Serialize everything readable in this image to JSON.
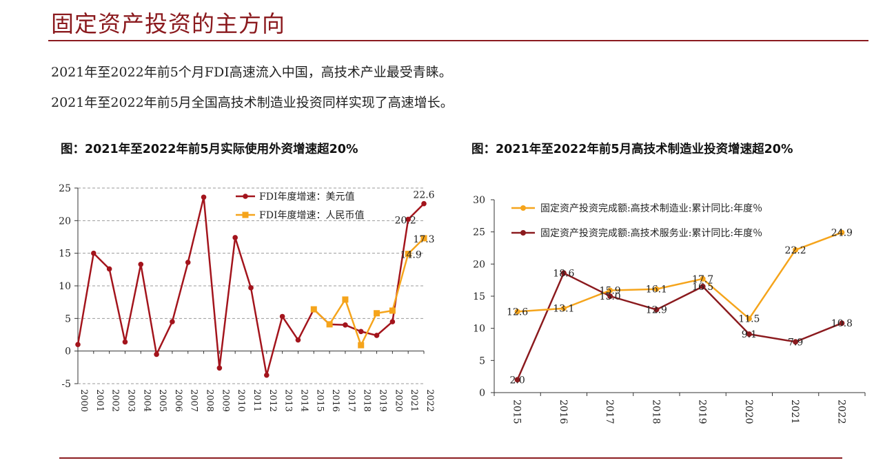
{
  "header": {
    "title": "固定资产投资的主方向"
  },
  "summary": {
    "line1": "2021年至2022年前5个月FDI高速流入中国，高技术产业最受青睐。",
    "line2": "2021年至2022年前5月全国高技术制造业投资同样实现了高速增长。"
  },
  "colors": {
    "brand": "#8b1a1e",
    "usd_series": "#a3141c",
    "rmb_series": "#f5a41b",
    "service_series": "#8b1a1e",
    "manufacturing_series": "#f5a41b"
  },
  "chart_data": [
    {
      "type": "line",
      "title": "图：2021年至2022年前5月实际使用外资增速超20%",
      "xlabel": "",
      "ylabel": "",
      "ylim": [
        -5,
        25
      ],
      "yticks": [
        -5,
        0,
        5,
        10,
        15,
        20,
        25
      ],
      "grid": true,
      "legend_position": "top-right",
      "x": [
        "2000",
        "2001",
        "2002",
        "2003",
        "2004",
        "2005",
        "2006",
        "2007",
        "2008",
        "2009",
        "2010",
        "2011",
        "2012",
        "2013",
        "2014",
        "2015",
        "2016",
        "2017",
        "2018",
        "2019",
        "2020",
        "2021",
        "2022"
      ],
      "series": [
        {
          "name": "FDI年度增速：美元值",
          "color": "#a3141c",
          "marker": "circle",
          "values": [
            1.0,
            15.0,
            12.6,
            1.4,
            13.3,
            -0.5,
            4.5,
            13.6,
            23.6,
            -2.6,
            17.4,
            9.7,
            -3.7,
            5.3,
            1.7,
            6.4,
            4.1,
            4.0,
            3.0,
            2.4,
            4.5,
            20.2,
            22.6
          ],
          "labels": {
            "21": "20.2",
            "22": "22.6"
          }
        },
        {
          "name": "FDI年度增速：人民币值",
          "color": "#f5a41b",
          "marker": "square",
          "values": [
            null,
            null,
            null,
            null,
            null,
            null,
            null,
            null,
            null,
            null,
            null,
            null,
            null,
            null,
            null,
            6.4,
            4.1,
            7.9,
            0.9,
            5.8,
            6.2,
            14.9,
            17.3
          ],
          "labels": {
            "21": "14.9",
            "22": "17.3"
          }
        }
      ]
    },
    {
      "type": "line",
      "title": "图：2021年至2022年前5月高技术制造业投资增速超20%",
      "xlabel": "",
      "ylabel": "",
      "ylim": [
        0,
        30
      ],
      "yticks": [
        0,
        5,
        10,
        15,
        20,
        25,
        30
      ],
      "grid": false,
      "legend_position": "top",
      "x": [
        "2015",
        "2016",
        "2017",
        "2018",
        "2019",
        "2020",
        "2021",
        "2022"
      ],
      "series": [
        {
          "name": "固定资产投资完成额:高技术制造业:累计同比:年度％",
          "color": "#f5a41b",
          "marker": "circle",
          "values": [
            12.6,
            13.1,
            15.9,
            16.1,
            17.7,
            11.5,
            22.2,
            24.9
          ],
          "labels": [
            "12.6",
            "13.1",
            "15.9",
            "16.1",
            "17.7",
            "11.5",
            "22.2",
            "24.9"
          ]
        },
        {
          "name": "固定资产投资完成额:高技术服务业:累计同比:年度％",
          "color": "#8b1a1e",
          "marker": "circle",
          "values": [
            2.0,
            18.6,
            15.0,
            12.9,
            16.5,
            9.1,
            7.9,
            10.8
          ],
          "labels": [
            "2.0",
            "18.6",
            "15.0",
            "12.9",
            "16.5",
            "9.1",
            "7.9",
            "10.8"
          ]
        }
      ]
    }
  ]
}
